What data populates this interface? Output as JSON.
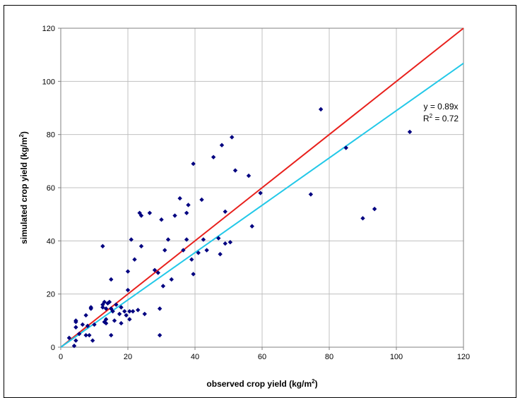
{
  "chart_data": {
    "type": "scatter",
    "xlabel": "observed crop yield (kg/m",
    "xlabel_sup": "2",
    "xlabel_tail": ")",
    "ylabel": "simulated crop yield (kg/m",
    "ylabel_sup": "2",
    "ylabel_tail": ")",
    "xlim": [
      0,
      120
    ],
    "ylim": [
      0,
      120
    ],
    "xticks": [
      0,
      20,
      40,
      60,
      80,
      100,
      120
    ],
    "yticks": [
      0,
      20,
      40,
      60,
      80,
      100,
      120
    ],
    "grid": true,
    "point_color": "#000080",
    "lines": [
      {
        "kind": "identity",
        "slope": 1,
        "color": "#e8201c"
      },
      {
        "kind": "regression",
        "slope": 0.89,
        "color": "#22c8e8"
      }
    ],
    "annotation": {
      "equation": "y = 0.89x",
      "r2_prefix": "R",
      "r2_sup": "2",
      "r2_suffix": " = 0.72"
    },
    "points": [
      [
        2.5,
        3.5
      ],
      [
        4.0,
        0.5
      ],
      [
        4.5,
        9.5
      ],
      [
        4.5,
        10.0
      ],
      [
        4.5,
        7.5
      ],
      [
        4.5,
        2.5
      ],
      [
        5.5,
        5.0
      ],
      [
        6.5,
        8.5
      ],
      [
        7.5,
        12.0
      ],
      [
        7.5,
        4.5
      ],
      [
        8.0,
        8.0
      ],
      [
        8.5,
        4.5
      ],
      [
        9.0,
        14.5
      ],
      [
        9.0,
        15.0
      ],
      [
        9.5,
        2.5
      ],
      [
        10.0,
        8.5
      ],
      [
        12.5,
        38.0
      ],
      [
        12.5,
        15.0
      ],
      [
        12.5,
        16.0
      ],
      [
        13.0,
        17.0
      ],
      [
        13.0,
        9.5
      ],
      [
        13.5,
        10.5
      ],
      [
        13.5,
        14.5
      ],
      [
        13.5,
        9.0
      ],
      [
        14.0,
        16.5
      ],
      [
        14.5,
        17.0
      ],
      [
        15.0,
        25.5
      ],
      [
        15.0,
        14.5
      ],
      [
        15.0,
        4.5
      ],
      [
        15.5,
        13.5
      ],
      [
        16.0,
        10.0
      ],
      [
        16.5,
        16.0
      ],
      [
        17.5,
        12.5
      ],
      [
        18.0,
        15.0
      ],
      [
        18.0,
        9.0
      ],
      [
        19.0,
        13.5
      ],
      [
        19.5,
        12.0
      ],
      [
        20.0,
        21.5
      ],
      [
        20.0,
        28.5
      ],
      [
        20.5,
        10.5
      ],
      [
        20.5,
        13.5
      ],
      [
        21.0,
        40.5
      ],
      [
        21.5,
        13.5
      ],
      [
        22.0,
        33.0
      ],
      [
        23.0,
        14.0
      ],
      [
        23.5,
        50.5
      ],
      [
        24.0,
        38.0
      ],
      [
        24.0,
        49.5
      ],
      [
        25.0,
        12.5
      ],
      [
        26.5,
        50.5
      ],
      [
        28.0,
        29.0
      ],
      [
        29.0,
        28.0
      ],
      [
        29.5,
        14.5
      ],
      [
        29.5,
        4.5
      ],
      [
        30.0,
        48.0
      ],
      [
        30.5,
        23.0
      ],
      [
        31.0,
        36.5
      ],
      [
        32.0,
        40.5
      ],
      [
        33.0,
        25.5
      ],
      [
        34.0,
        49.5
      ],
      [
        35.5,
        56.0
      ],
      [
        36.5,
        36.5
      ],
      [
        37.5,
        40.5
      ],
      [
        37.5,
        50.5
      ],
      [
        38.0,
        53.5
      ],
      [
        39.0,
        33.0
      ],
      [
        39.5,
        69.0
      ],
      [
        39.5,
        27.5
      ],
      [
        41.0,
        35.5
      ],
      [
        42.0,
        55.5
      ],
      [
        42.5,
        40.5
      ],
      [
        43.5,
        36.5
      ],
      [
        45.5,
        71.5
      ],
      [
        47.0,
        41.0
      ],
      [
        47.5,
        35.0
      ],
      [
        48.0,
        76.0
      ],
      [
        49.0,
        51.0
      ],
      [
        49.0,
        39.0
      ],
      [
        50.5,
        39.5
      ],
      [
        51.0,
        79.0
      ],
      [
        52.0,
        66.5
      ],
      [
        56.0,
        64.5
      ],
      [
        57.0,
        45.5
      ],
      [
        59.5,
        58.0
      ],
      [
        74.5,
        57.5
      ],
      [
        77.5,
        89.5
      ],
      [
        85.0,
        75.0
      ],
      [
        90.0,
        48.5
      ],
      [
        93.5,
        52.0
      ],
      [
        104.0,
        81.0
      ]
    ]
  }
}
